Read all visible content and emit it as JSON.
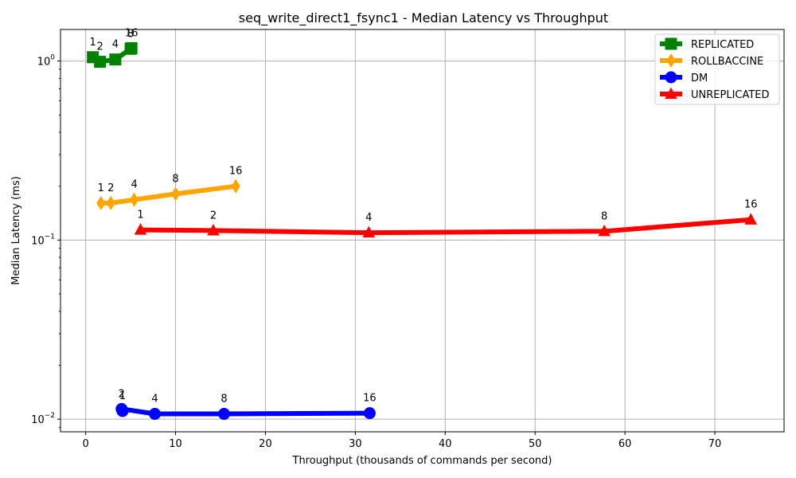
{
  "chart_data": {
    "type": "line",
    "title": "seq_write_direct1_fsync1 - Median Latency vs Throughput",
    "xlabel": "Throughput (thousands of commands per second)",
    "ylabel": "Median Latency (ms)",
    "xlim": [
      -2.8,
      77.7
    ],
    "ylim": [
      0.0085,
      1.5
    ],
    "yscale": "log",
    "grid": true,
    "legend_position": "top-right",
    "x_ticks": [
      0,
      10,
      20,
      30,
      40,
      50,
      60,
      70
    ],
    "y_ticks": [
      {
        "value": 0.01,
        "base": "10",
        "exp": "−2"
      },
      {
        "value": 0.1,
        "base": "10",
        "exp": "−1"
      },
      {
        "value": 1,
        "base": "10",
        "exp": "0"
      }
    ],
    "series": [
      {
        "name": "REPLICATED",
        "color": "#008000",
        "marker": "square",
        "points": [
          {
            "x": 0.8,
            "y": 1.05,
            "label": "1"
          },
          {
            "x": 1.6,
            "y": 0.99,
            "label": "2"
          },
          {
            "x": 3.3,
            "y": 1.02,
            "label": "4"
          },
          {
            "x": 5.0,
            "y": 1.17,
            "label": "8"
          },
          {
            "x": 5.1,
            "y": 1.18,
            "label": "16"
          }
        ]
      },
      {
        "name": "ROLLBACCINE",
        "color": "#FFA500",
        "marker": "diamond",
        "points": [
          {
            "x": 1.7,
            "y": 0.161,
            "label": "1"
          },
          {
            "x": 2.8,
            "y": 0.161,
            "label": "2"
          },
          {
            "x": 5.4,
            "y": 0.168,
            "label": "4"
          },
          {
            "x": 10.0,
            "y": 0.181,
            "label": "8"
          },
          {
            "x": 16.7,
            "y": 0.2,
            "label": "16"
          }
        ]
      },
      {
        "name": "DM",
        "color": "#0000FF",
        "marker": "circle",
        "points": [
          {
            "x": 4.1,
            "y": 0.0111,
            "label": "1"
          },
          {
            "x": 4.0,
            "y": 0.0114,
            "label": "2"
          },
          {
            "x": 7.7,
            "y": 0.0107,
            "label": "4"
          },
          {
            "x": 15.4,
            "y": 0.0107,
            "label": "8"
          },
          {
            "x": 31.6,
            "y": 0.0108,
            "label": "16"
          }
        ]
      },
      {
        "name": "UNREPLICATED",
        "color": "#FF0000",
        "marker": "triangle",
        "points": [
          {
            "x": 6.1,
            "y": 0.114,
            "label": "1"
          },
          {
            "x": 14.2,
            "y": 0.113,
            "label": "2"
          },
          {
            "x": 31.5,
            "y": 0.11,
            "label": "4"
          },
          {
            "x": 57.7,
            "y": 0.112,
            "label": "8"
          },
          {
            "x": 74.0,
            "y": 0.13,
            "label": "16"
          }
        ]
      }
    ]
  }
}
